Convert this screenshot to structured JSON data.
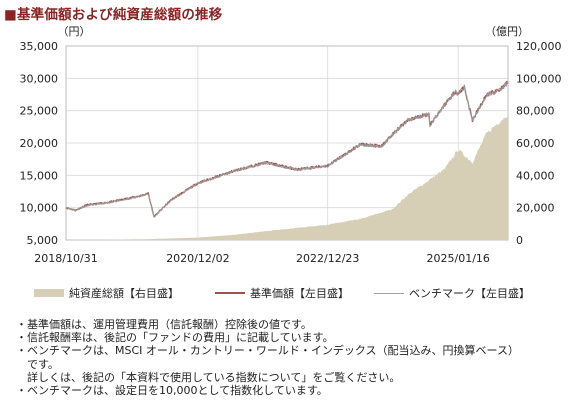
{
  "title": "■基準価額および純資産総額の推移",
  "chart_data": {
    "type": "line",
    "left_axis_unit": "（円）",
    "right_axis_unit": "（億円）",
    "left_ylim": [
      5000,
      35000
    ],
    "right_ylim": [
      0,
      120000
    ],
    "left_ticks": [
      "5,000",
      "10,000",
      "15,000",
      "20,000",
      "25,000",
      "30,000",
      "35,000"
    ],
    "right_ticks": [
      "0",
      "20,000",
      "40,000",
      "60,000",
      "80,000",
      "100,000",
      "120,000"
    ],
    "x_ticks": [
      "2018/10/31",
      "2020/12/02",
      "2022/12/23",
      "2025/01/16"
    ],
    "x_range": [
      "2018-10-31",
      "2025-10-31"
    ],
    "grid": true,
    "series": [
      {
        "name": "純資産総額【右目盛】",
        "axis": "right",
        "style": "area",
        "color": "#d6cfb6",
        "x": [
          "2018-10-31",
          "2019-06-30",
          "2020-03-15",
          "2020-12-02",
          "2021-06-30",
          "2021-12-31",
          "2022-06-30",
          "2022-12-23",
          "2023-06-30",
          "2023-12-31",
          "2024-03-31",
          "2024-07-31",
          "2024-10-31",
          "2025-01-16",
          "2025-04-08",
          "2025-06-30",
          "2025-10-31"
        ],
        "values": [
          0,
          200,
          600,
          1500,
          3200,
          5500,
          7500,
          9500,
          13000,
          19000,
          28000,
          37000,
          44000,
          56000,
          48000,
          66000,
          78000
        ]
      },
      {
        "name": "基準価額【左目盛】",
        "axis": "left",
        "style": "line",
        "color": "#a0524d",
        "x": [
          "2018-10-31",
          "2018-12-25",
          "2019-02-28",
          "2019-06-30",
          "2019-12-31",
          "2020-02-19",
          "2020-03-23",
          "2020-06-30",
          "2020-12-02",
          "2021-06-30",
          "2021-12-31",
          "2022-06-30",
          "2022-12-23",
          "2023-06-30",
          "2023-10-31",
          "2023-12-31",
          "2024-03-31",
          "2024-07-31",
          "2024-08-05",
          "2024-10-31",
          "2024-12-31",
          "2025-01-16",
          "2025-02-20",
          "2025-04-08",
          "2025-06-30",
          "2025-08-31",
          "2025-10-31"
        ],
        "values": [
          10000,
          9600,
          10400,
          10800,
          11800,
          12200,
          8600,
          11200,
          13800,
          15700,
          17000,
          15900,
          16500,
          19800,
          19500,
          21300,
          23600,
          24500,
          22800,
          26000,
          28000,
          27600,
          28700,
          23500,
          27500,
          28000,
          29300
        ]
      },
      {
        "name": "ベンチマーク【左目盛】",
        "axis": "left",
        "style": "line",
        "color": "#9a9a9a",
        "x": [
          "2018-10-31",
          "2018-12-25",
          "2019-02-28",
          "2019-06-30",
          "2019-12-31",
          "2020-02-19",
          "2020-03-23",
          "2020-06-30",
          "2020-12-02",
          "2021-06-30",
          "2021-12-31",
          "2022-06-30",
          "2022-12-23",
          "2023-06-30",
          "2023-10-31",
          "2023-12-31",
          "2024-03-31",
          "2024-07-31",
          "2024-08-05",
          "2024-10-31",
          "2024-12-31",
          "2025-01-16",
          "2025-02-20",
          "2025-04-08",
          "2025-06-30",
          "2025-08-31",
          "2025-10-31"
        ],
        "values": [
          10000,
          9550,
          10350,
          10750,
          11750,
          12150,
          8550,
          11150,
          13750,
          15650,
          16950,
          15850,
          16450,
          19750,
          19450,
          21250,
          23550,
          24450,
          22750,
          25950,
          27950,
          27550,
          28650,
          23450,
          27450,
          27950,
          29250
        ]
      }
    ]
  },
  "legend": [
    {
      "label": "純資産総額【右目盛】"
    },
    {
      "label": "基準価額【左目盛】"
    },
    {
      "label": "ベンチマーク【左目盛】"
    }
  ],
  "notes": [
    "・基準価額は、運用管理費用（信託報酬）控除後の値です。",
    "・信託報酬率は、後記の「ファンドの費用」に記載しています。",
    "・ベンチマークは、MSCI オール・カントリー・ワールド・インデックス（配当込み、円換算ベース）",
    "　です。",
    "詳しくは、後記の「本資料で使用している指数について」をご覧ください。",
    "・ベンチマークは、設定日を10,000として指数化しています。"
  ]
}
